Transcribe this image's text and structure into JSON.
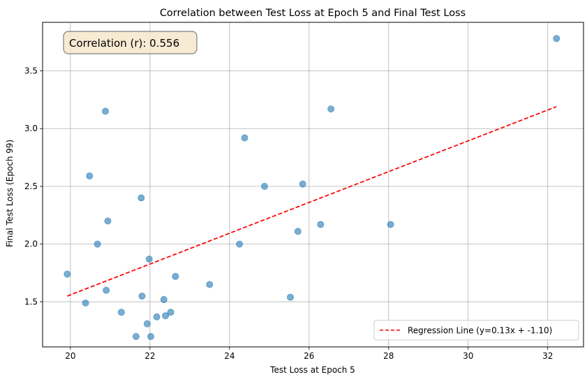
{
  "chart_data": {
    "type": "scatter",
    "title": "Correlation between Test Loss at Epoch 5 and Final Test Loss",
    "xlabel": "Test Loss at Epoch 5",
    "ylabel": "Final Test Loss (Epoch 99)",
    "xlim": [
      19.3,
      32.9
    ],
    "ylim": [
      1.11,
      3.92
    ],
    "xticks": [
      20,
      22,
      24,
      26,
      28,
      30,
      32
    ],
    "yticks": [
      1.5,
      2.0,
      2.5,
      3.0,
      3.5
    ],
    "xtick_labels": [
      "20",
      "22",
      "24",
      "26",
      "28",
      "30",
      "32"
    ],
    "ytick_labels": [
      "1.5",
      "2.0",
      "2.5",
      "3.0",
      "3.5"
    ],
    "grid": true,
    "annotation": "Correlation (r): 0.556",
    "annotation_position": "top-left",
    "legend_position": "bottom-right",
    "points": [
      {
        "x": 19.92,
        "y": 1.74
      },
      {
        "x": 20.38,
        "y": 1.49
      },
      {
        "x": 20.48,
        "y": 2.59
      },
      {
        "x": 20.68,
        "y": 2.0
      },
      {
        "x": 20.88,
        "y": 3.15
      },
      {
        "x": 20.9,
        "y": 1.6
      },
      {
        "x": 20.94,
        "y": 2.2
      },
      {
        "x": 21.28,
        "y": 1.41
      },
      {
        "x": 21.65,
        "y": 1.2
      },
      {
        "x": 21.78,
        "y": 2.4
      },
      {
        "x": 21.8,
        "y": 1.55
      },
      {
        "x": 21.93,
        "y": 1.31
      },
      {
        "x": 21.98,
        "y": 1.87
      },
      {
        "x": 22.02,
        "y": 1.2
      },
      {
        "x": 22.17,
        "y": 1.37
      },
      {
        "x": 22.35,
        "y": 1.52
      },
      {
        "x": 22.39,
        "y": 1.38
      },
      {
        "x": 22.52,
        "y": 1.41
      },
      {
        "x": 22.64,
        "y": 1.72
      },
      {
        "x": 23.5,
        "y": 1.65
      },
      {
        "x": 24.25,
        "y": 2.0
      },
      {
        "x": 24.38,
        "y": 2.92
      },
      {
        "x": 24.88,
        "y": 2.5
      },
      {
        "x": 25.53,
        "y": 1.54
      },
      {
        "x": 25.72,
        "y": 2.11
      },
      {
        "x": 25.84,
        "y": 2.52
      },
      {
        "x": 26.29,
        "y": 2.17
      },
      {
        "x": 26.55,
        "y": 3.17
      },
      {
        "x": 28.05,
        "y": 2.17
      },
      {
        "x": 32.22,
        "y": 3.78
      }
    ],
    "series": [
      {
        "name": "Regression Line (y=0.13x + -1.10)",
        "type": "line",
        "color": "#ff0000",
        "style": "dashed",
        "x": [
          19.92,
          32.22
        ],
        "y": [
          1.55,
          3.19
        ]
      }
    ],
    "point_color": "#1f77b4",
    "point_alpha": 0.6
  }
}
